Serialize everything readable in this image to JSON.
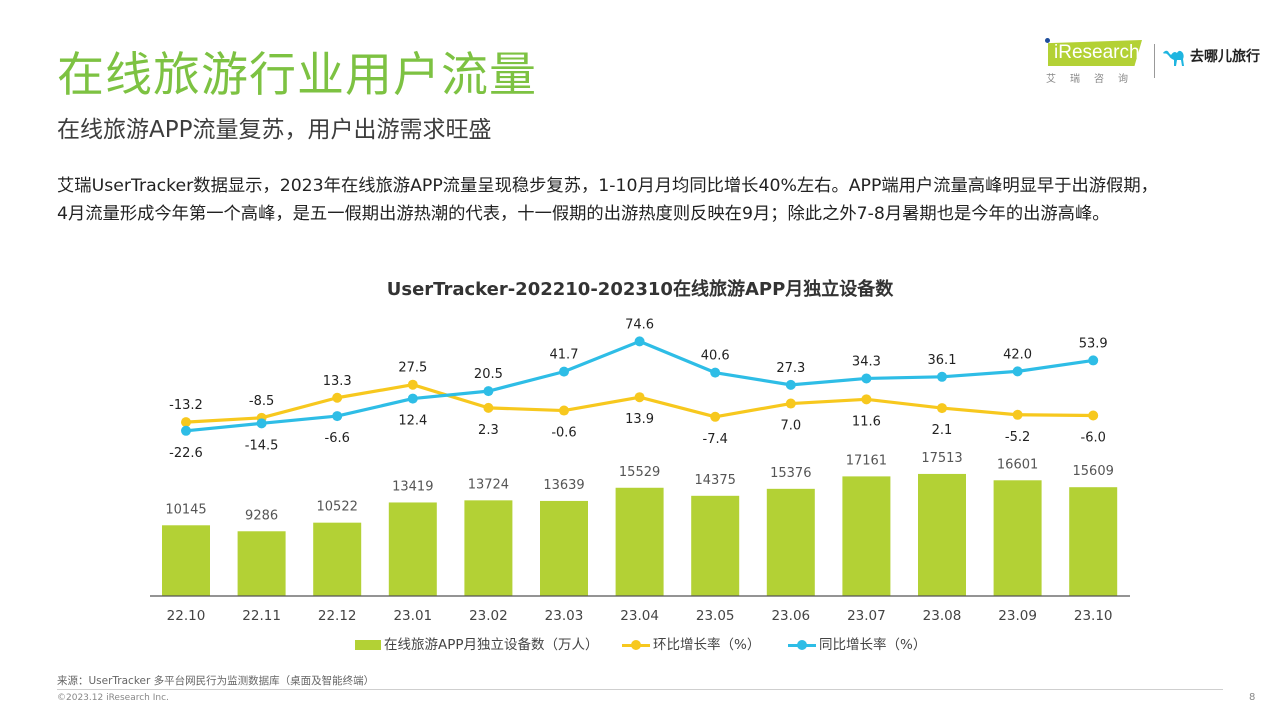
{
  "header": {
    "title": "在线旅游行业用户流量",
    "subtitle": "在线旅游APP流量复苏，用户出游需求旺盛"
  },
  "logos": {
    "iresearch_text": "iResearch",
    "iresearch_sub": "艾瑞咨询",
    "qunar_text": "去哪儿旅行",
    "iresearch_color": "#b3d135",
    "qunar_color": "#1fb5e0"
  },
  "body": {
    "lines": [
      "艾瑞UserTracker数据显示，2023年在线旅游APP流量呈现稳步复苏，1-10月月均同比增长40%左右。APP端用户流量高峰明显早于出游假期，",
      "4月流量形成今年第一个高峰，是五一假期出游热潮的代表，十一假期的出游热度则反映在9月；除此之外7-8月暑期也是今年的出游高峰。"
    ]
  },
  "chart_data": {
    "type": "bar+line",
    "title": "UserTracker-202210-202310在线旅游APP月独立设备数",
    "categories": [
      "22.10",
      "22.11",
      "22.12",
      "23.01",
      "23.02",
      "23.03",
      "23.04",
      "23.05",
      "23.06",
      "23.07",
      "23.08",
      "23.09",
      "23.10"
    ],
    "series": [
      {
        "name": "在线旅游APP月独立设备数（万人）",
        "type": "bar",
        "color": "#b3d135",
        "values": [
          10145,
          9286,
          10522,
          13419,
          13724,
          13639,
          15529,
          14375,
          15376,
          17161,
          17513,
          16601,
          15609
        ]
      },
      {
        "name": "环比增长率（%）",
        "type": "line",
        "color": "#f7c81e",
        "values": [
          -13.2,
          -8.5,
          13.3,
          27.5,
          2.3,
          -0.6,
          13.9,
          -7.4,
          7.0,
          11.6,
          2.1,
          -5.2,
          -6.0
        ],
        "label_position": [
          "above",
          "above",
          "above",
          "above",
          "below",
          "below",
          "below",
          "below",
          "below",
          "below",
          "below",
          "below",
          "below"
        ]
      },
      {
        "name": "同比增长率（%）",
        "type": "line",
        "color": "#2ebde6",
        "values": [
          -22.6,
          -14.5,
          -6.6,
          12.4,
          20.5,
          41.7,
          74.6,
          40.6,
          27.3,
          34.3,
          36.1,
          42.0,
          53.9
        ],
        "label_position": [
          "below",
          "below",
          "below",
          "below",
          "above",
          "above",
          "above",
          "above",
          "above",
          "above",
          "above",
          "above",
          "above"
        ]
      }
    ],
    "xlabel": "",
    "ylabel": "",
    "bar_ylim": [
      0,
      17513
    ],
    "line_ylim": [
      -22.6,
      74.6
    ],
    "grid": false,
    "legend_position": "bottom"
  },
  "legend": {
    "bar_label": "在线旅游APP月独立设备数（万人）",
    "mom_label": "环比增长率（%）",
    "yoy_label": "同比增长率（%）"
  },
  "footer": {
    "source": "来源：UserTracker 多平台网民行为监测数据库（桌面及智能终端）",
    "copyright": "©2023.12 iResearch Inc.",
    "page_number": "8"
  }
}
